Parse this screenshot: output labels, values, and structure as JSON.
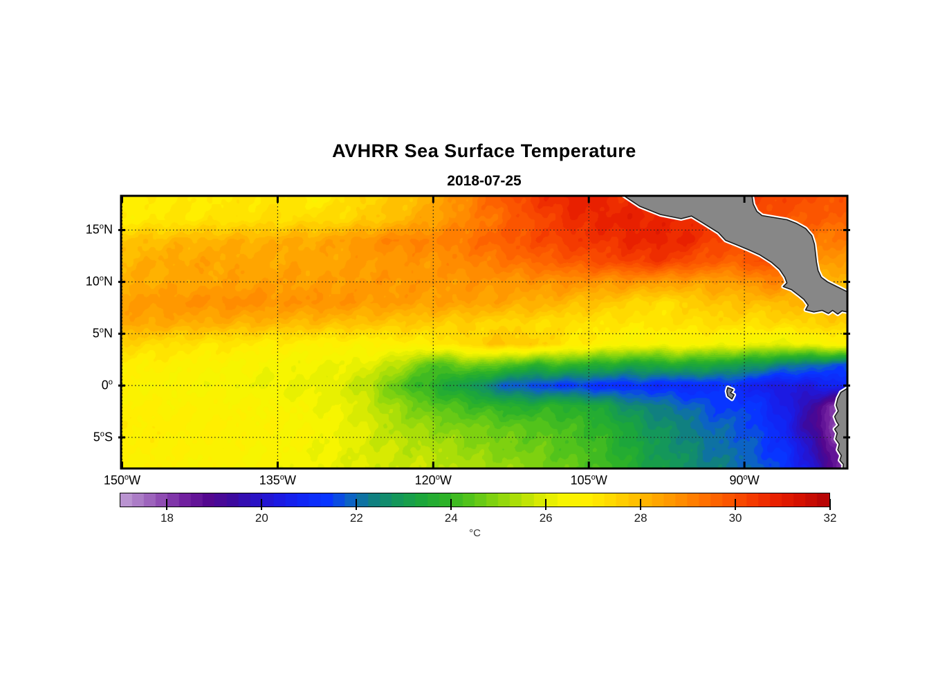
{
  "title": "AVHRR Sea Surface Temperature",
  "subtitle": "2018-07-25",
  "chart_data": {
    "type": "heatmap",
    "title": "AVHRR Sea Surface Temperature",
    "subtitle": "2018-07-25",
    "grid": true,
    "grid_style": "dotted",
    "lon_range": [
      -150.1,
      -80.07
    ],
    "lat_range": [
      -8.0,
      18.3
    ],
    "x_ticks": [
      {
        "lon": -150,
        "label": "150°W"
      },
      {
        "lon": -135,
        "label": "135°W"
      },
      {
        "lon": -120,
        "label": "120°W"
      },
      {
        "lon": -105,
        "label": "105°W"
      },
      {
        "lon": -90,
        "label": "90°W"
      }
    ],
    "y_ticks": [
      {
        "lat": 15,
        "label": "15°N"
      },
      {
        "lat": 10,
        "label": "10°N"
      },
      {
        "lat": 5,
        "label": "5°N"
      },
      {
        "lat": 0,
        "label": "0°"
      },
      {
        "lat": -5,
        "label": "5°S"
      }
    ],
    "colorbar": {
      "orientation": "horizontal-bottom",
      "min": 17,
      "max": 32,
      "step": 0.25,
      "ticks": [
        18,
        20,
        22,
        24,
        26,
        28,
        30,
        32
      ],
      "unit": "°C",
      "stops": [
        [
          17.0,
          "#c6a9d9"
        ],
        [
          17.5,
          "#ab7cc6"
        ],
        [
          18.0,
          "#8f4cb2"
        ],
        [
          18.5,
          "#71209f"
        ],
        [
          19.0,
          "#54078f"
        ],
        [
          19.5,
          "#3d0a9e"
        ],
        [
          20.0,
          "#2a12c4"
        ],
        [
          20.5,
          "#1c1ae2"
        ],
        [
          21.0,
          "#1026f5"
        ],
        [
          21.5,
          "#0835ff"
        ],
        [
          22.0,
          "#0c63c4"
        ],
        [
          22.5,
          "#108080"
        ],
        [
          23.0,
          "#14975a"
        ],
        [
          23.5,
          "#1ca63b"
        ],
        [
          24.0,
          "#2db228"
        ],
        [
          24.5,
          "#52c31b"
        ],
        [
          25.0,
          "#7ed110"
        ],
        [
          25.5,
          "#aade08"
        ],
        [
          26.0,
          "#d8ea02"
        ],
        [
          26.5,
          "#f7f500"
        ],
        [
          27.0,
          "#ffef00"
        ],
        [
          27.5,
          "#ffda00"
        ],
        [
          28.0,
          "#ffc000"
        ],
        [
          28.5,
          "#ffa500"
        ],
        [
          29.0,
          "#ff8c00"
        ],
        [
          29.5,
          "#ff7000"
        ],
        [
          30.0,
          "#fb5500"
        ],
        [
          30.5,
          "#f43a00"
        ],
        [
          31.0,
          "#e82000"
        ],
        [
          31.5,
          "#d51000"
        ],
        [
          32.0,
          "#b80505"
        ]
      ]
    },
    "sst_grid": {
      "lons": [
        -150,
        -148,
        -146,
        -144,
        -142,
        -140,
        -138,
        -136,
        -134,
        -132,
        -130,
        -128,
        -126,
        -124,
        -122,
        -120,
        -118,
        -116,
        -114,
        -112,
        -110,
        -108,
        -106,
        -104,
        -102,
        -100,
        -98,
        -96,
        -94,
        -92,
        -90,
        -88,
        -86,
        -84,
        -82,
        -80
      ],
      "lats": [
        18.3,
        16,
        14,
        12,
        10,
        8,
        6,
        4,
        2,
        0,
        -2,
        -4,
        -6,
        -8
      ],
      "temps": [
        [
          27.0,
          27.0,
          27.1,
          27.1,
          27.0,
          27.2,
          27.1,
          27.3,
          27.2,
          26.9,
          27.0,
          27.5,
          27.6,
          27.8,
          28.0,
          28.3,
          28.8,
          29.3,
          29.8,
          30.2,
          30.6,
          30.9,
          31.1,
          30.9,
          30.7,
          30.8,
          30.9,
          30.9,
          30.8,
          30.6,
          30.5,
          30.4,
          30.3,
          30.2,
          30.1,
          30.0
        ],
        [
          27.0,
          27.1,
          27.1,
          27.2,
          27.2,
          27.3,
          27.3,
          27.4,
          27.4,
          27.5,
          27.5,
          27.6,
          27.8,
          28.0,
          28.3,
          28.6,
          28.9,
          29.2,
          29.5,
          29.9,
          30.2,
          30.5,
          30.8,
          30.9,
          31.0,
          31.0,
          30.9,
          30.9,
          30.7,
          30.5,
          30.3,
          30.2,
          30.0,
          29.9,
          29.8,
          29.7
        ],
        [
          27.9,
          28.0,
          28.1,
          28.2,
          28.2,
          28.3,
          28.3,
          28.3,
          28.4,
          28.4,
          28.5,
          28.7,
          28.9,
          29.1,
          29.2,
          29.1,
          29.3,
          29.5,
          29.8,
          30.0,
          30.2,
          30.4,
          30.6,
          30.6,
          30.8,
          30.9,
          31.0,
          30.9,
          30.6,
          30.3,
          30.1,
          30.0,
          29.6,
          29.4,
          29.3,
          29.2
        ],
        [
          28.2,
          28.3,
          28.4,
          28.5,
          28.5,
          28.5,
          28.5,
          28.4,
          28.5,
          28.5,
          28.5,
          28.6,
          28.7,
          28.7,
          28.8,
          28.8,
          29.0,
          29.2,
          29.3,
          29.5,
          29.7,
          29.8,
          30.0,
          30.2,
          30.3,
          30.5,
          30.5,
          30.3,
          30.0,
          29.8,
          29.9,
          30.2,
          29.6,
          29.0,
          28.8,
          28.7
        ],
        [
          28.3,
          28.4,
          28.4,
          28.5,
          28.5,
          28.5,
          28.6,
          28.6,
          28.6,
          28.6,
          28.6,
          28.7,
          28.7,
          28.8,
          28.8,
          28.7,
          28.8,
          28.8,
          28.8,
          28.8,
          28.8,
          28.9,
          28.9,
          28.8,
          28.8,
          28.8,
          28.7,
          28.6,
          28.6,
          28.6,
          28.7,
          29.2,
          29.0,
          28.3,
          28.1,
          28.0
        ],
        [
          28.6,
          28.7,
          28.8,
          28.9,
          28.9,
          29.0,
          29.0,
          28.9,
          28.8,
          28.9,
          28.9,
          28.8,
          28.7,
          28.7,
          28.6,
          28.6,
          28.6,
          28.6,
          28.5,
          28.4,
          28.3,
          28.2,
          28.0,
          27.9,
          27.8,
          27.5,
          27.3,
          27.6,
          27.8,
          28.0,
          28.0,
          28.0,
          28.2,
          28.1,
          28.0,
          28.0
        ],
        [
          28.5,
          28.5,
          28.4,
          28.4,
          28.3,
          28.3,
          28.2,
          28.2,
          28.1,
          28.1,
          28.0,
          28.0,
          27.9,
          27.9,
          27.8,
          27.8,
          27.7,
          27.6,
          27.5,
          27.5,
          27.4,
          27.4,
          27.3,
          27.3,
          27.2,
          27.2,
          27.3,
          27.3,
          27.4,
          27.5,
          27.4,
          27.4,
          27.5,
          27.6,
          27.7,
          27.8
        ],
        [
          27.6,
          27.5,
          27.4,
          27.3,
          27.2,
          27.2,
          27.1,
          27.0,
          27.0,
          26.9,
          26.9,
          26.8,
          26.8,
          26.9,
          27.0,
          27.0,
          27.3,
          27.6,
          27.9,
          27.9,
          27.7,
          27.4,
          27.1,
          26.9,
          26.7,
          26.6,
          26.6,
          26.7,
          26.6,
          26.5,
          26.4,
          26.3,
          26.2,
          26.4,
          26.7,
          26.9
        ],
        [
          27.0,
          26.9,
          26.9,
          26.8,
          26.7,
          26.7,
          26.6,
          26.5,
          26.5,
          26.4,
          26.4,
          26.3,
          26.2,
          25.8,
          25.2,
          24.4,
          24.6,
          25.0,
          24.7,
          24.3,
          24.0,
          24.2,
          24.0,
          23.8,
          23.6,
          23.5,
          23.6,
          23.8,
          23.5,
          23.4,
          23.2,
          22.8,
          22.5,
          22.2,
          22.0,
          21.8
        ],
        [
          26.7,
          26.7,
          26.6,
          26.6,
          26.5,
          26.5,
          26.4,
          26.4,
          26.3,
          26.3,
          26.2,
          26.0,
          25.5,
          24.8,
          24.2,
          23.8,
          23.4,
          23.0,
          22.2,
          21.8,
          21.6,
          21.5,
          21.4,
          21.3,
          21.2,
          21.3,
          21.2,
          21.0,
          21.2,
          21.4,
          21.0,
          20.6,
          20.4,
          20.5,
          20.8,
          21.0
        ],
        [
          26.9,
          26.9,
          26.8,
          26.8,
          26.8,
          26.8,
          26.7,
          26.7,
          26.6,
          26.5,
          26.4,
          26.2,
          25.8,
          25.4,
          25.0,
          24.6,
          24.4,
          24.2,
          24.0,
          23.8,
          23.8,
          24.0,
          23.8,
          23.5,
          23.0,
          22.6,
          22.4,
          22.2,
          21.8,
          21.5,
          21.6,
          21.2,
          20.6,
          19.8,
          18.6,
          17.8
        ],
        [
          27.0,
          27.0,
          27.0,
          26.9,
          26.9,
          26.9,
          26.8,
          26.8,
          26.7,
          26.6,
          26.5,
          26.3,
          26.0,
          25.6,
          25.4,
          25.2,
          25.0,
          24.9,
          24.8,
          24.6,
          24.6,
          24.4,
          24.2,
          24.0,
          23.6,
          23.2,
          22.8,
          22.6,
          22.2,
          22.0,
          21.8,
          21.4,
          20.8,
          19.6,
          18.4,
          17.6
        ],
        [
          26.9,
          26.9,
          26.9,
          26.8,
          26.8,
          26.8,
          26.7,
          26.7,
          26.6,
          26.5,
          26.4,
          26.2,
          26.0,
          25.8,
          25.7,
          25.6,
          25.4,
          25.2,
          25.0,
          24.9,
          24.8,
          24.6,
          24.4,
          24.2,
          23.8,
          23.4,
          23.0,
          22.8,
          22.4,
          22.2,
          22.0,
          21.6,
          21.2,
          20.2,
          19.0,
          17.8
        ],
        [
          26.8,
          26.8,
          26.8,
          26.7,
          26.7,
          26.7,
          26.6,
          26.6,
          26.5,
          26.4,
          26.3,
          26.2,
          26.0,
          25.9,
          25.8,
          25.8,
          25.6,
          25.5,
          25.4,
          25.2,
          25.0,
          24.8,
          24.6,
          24.4,
          24.0,
          23.6,
          23.2,
          23.0,
          22.6,
          22.4,
          22.2,
          21.8,
          21.4,
          20.6,
          19.2,
          18.0
        ]
      ]
    },
    "land": {
      "fill": "#878787",
      "coast": "#1a1a1a",
      "halo": "#ffffff",
      "features": [
        {
          "name": "central-america",
          "points": [
            [
              -101.9,
              18.5
            ],
            [
              -100.1,
              17.3
            ],
            [
              -98.1,
              16.5
            ],
            [
              -96.1,
              16.1
            ],
            [
              -95.1,
              16.35
            ],
            [
              -94.1,
              15.75
            ],
            [
              -92.5,
              14.75
            ],
            [
              -91.8,
              14.0
            ],
            [
              -90.8,
              13.6
            ],
            [
              -89.6,
              13.1
            ],
            [
              -88.5,
              12.6
            ],
            [
              -87.4,
              11.9
            ],
            [
              -86.6,
              11.2
            ],
            [
              -86.1,
              10.45
            ],
            [
              -85.9,
              9.9
            ],
            [
              -86.25,
              9.55
            ],
            [
              -85.45,
              9.25
            ],
            [
              -84.8,
              8.75
            ],
            [
              -84.25,
              8.3
            ],
            [
              -83.85,
              7.75
            ],
            [
              -84.1,
              7.3
            ],
            [
              -83.3,
              7.1
            ],
            [
              -82.5,
              7.25
            ],
            [
              -81.9,
              6.95
            ],
            [
              -81.5,
              7.25
            ],
            [
              -81.0,
              6.9
            ],
            [
              -80.6,
              7.2
            ],
            [
              -79.8,
              7.05
            ],
            [
              -79.8,
              8.9
            ],
            [
              -80.6,
              9.3
            ],
            [
              -81.3,
              9.65
            ],
            [
              -82.0,
              10.0
            ],
            [
              -82.6,
              10.45
            ],
            [
              -82.9,
              11.1
            ],
            [
              -83.05,
              11.9
            ],
            [
              -83.15,
              12.8
            ],
            [
              -83.25,
              13.65
            ],
            [
              -83.5,
              14.45
            ],
            [
              -84.1,
              15.15
            ],
            [
              -85.0,
              15.65
            ],
            [
              -85.9,
              16.0
            ],
            [
              -87.1,
              16.2
            ],
            [
              -88.3,
              16.4
            ],
            [
              -88.8,
              16.8
            ],
            [
              -89.15,
              17.5
            ],
            [
              -89.3,
              18.5
            ]
          ]
        },
        {
          "name": "south-america",
          "points": [
            [
              -79.8,
              -0.1
            ],
            [
              -80.7,
              -0.65
            ],
            [
              -81.0,
              -1.25
            ],
            [
              -81.15,
              -1.9
            ],
            [
              -80.95,
              -2.45
            ],
            [
              -81.3,
              -3.0
            ],
            [
              -81.1,
              -3.5
            ],
            [
              -80.9,
              -3.8
            ],
            [
              -81.3,
              -4.2
            ],
            [
              -81.05,
              -4.6
            ],
            [
              -81.2,
              -5.15
            ],
            [
              -80.85,
              -5.65
            ],
            [
              -81.0,
              -6.2
            ],
            [
              -80.65,
              -6.75
            ],
            [
              -80.8,
              -7.2
            ],
            [
              -80.45,
              -7.6
            ],
            [
              -80.5,
              -8.2
            ],
            [
              -79.8,
              -8.2
            ]
          ]
        },
        {
          "name": "galapagos-islands",
          "points": [
            [
              -91.6,
              -0.2
            ],
            [
              -91.1,
              -0.4
            ],
            [
              -91.35,
              -0.7
            ],
            [
              -91.0,
              -0.9
            ],
            [
              -91.2,
              -1.3
            ],
            [
              -91.6,
              -1.0
            ],
            [
              -91.7,
              -0.55
            ]
          ]
        }
      ]
    }
  }
}
